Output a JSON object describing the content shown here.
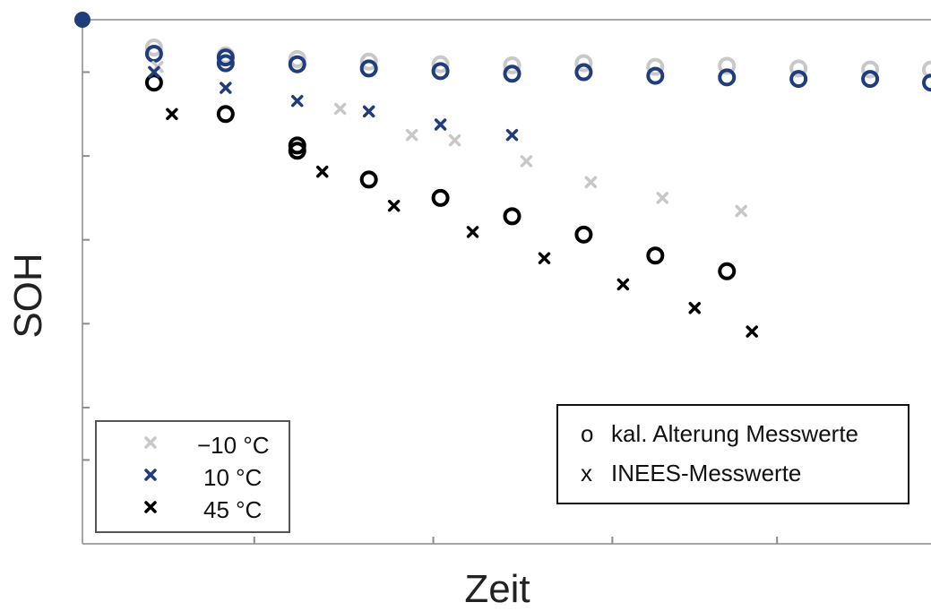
{
  "chart_data": {
    "type": "scatter",
    "title": "",
    "xlabel": "Zeit",
    "ylabel": "SOH",
    "xlim": [
      0,
      11.85
    ],
    "ylim": [
      0,
      10
    ],
    "grid": false,
    "x_ticks": [
      2.4,
      4.9,
      7.4,
      9.7
    ],
    "y_ticks": [
      9.0,
      7.4,
      5.8,
      4.2,
      2.6,
      1.6
    ],
    "axis_origin_marker_color": "#1f3d7a",
    "legend_temperature": {
      "placement": "bottom-left",
      "entries": [
        {
          "label": "−10 °C",
          "marker": "x",
          "color": "#c8c8c8"
        },
        {
          "label": "10 °C",
          "marker": "x",
          "color": "#1f3d7a"
        },
        {
          "label": "45 °C",
          "marker": "x",
          "color": "#000000"
        }
      ]
    },
    "legend_source": {
      "placement": "bottom-right",
      "entries": [
        {
          "label": "kal. Alterung Messwerte",
          "symbol": "o"
        },
        {
          "label": "INEES-Messwerte",
          "symbol": "x"
        }
      ]
    },
    "series": [
      {
        "temperature": "−10 °C",
        "kind": "measured",
        "color": "#c8c8c8",
        "marker": "o",
        "x": [
          1.0,
          2.0,
          3.0,
          4.0,
          5.0,
          6.0,
          7.0,
          8.0,
          9.0,
          10.0,
          11.0,
          11.85
        ],
        "y": [
          9.47,
          9.32,
          9.25,
          9.2,
          9.15,
          9.13,
          9.17,
          9.1,
          9.12,
          9.07,
          9.05,
          9.05
        ]
      },
      {
        "temperature": "10 °C",
        "kind": "measured",
        "color": "#1f3d7a",
        "marker": "o",
        "x": [
          1.0,
          2.0,
          2.0,
          3.0,
          4.0,
          5.0,
          6.0,
          7.0,
          8.0,
          9.0,
          10.0,
          11.0,
          11.85
        ],
        "y": [
          9.35,
          9.28,
          9.17,
          9.15,
          9.07,
          9.02,
          8.97,
          9.0,
          8.93,
          8.9,
          8.87,
          8.87,
          8.8
        ]
      },
      {
        "temperature": "45 °C",
        "kind": "measured",
        "color": "#000000",
        "marker": "o",
        "x": [
          1.0,
          2.0,
          3.0,
          3.0,
          4.0,
          5.0,
          6.0,
          7.0,
          8.0,
          9.0
        ],
        "y": [
          8.8,
          8.2,
          7.6,
          7.5,
          6.95,
          6.6,
          6.25,
          5.9,
          5.5,
          5.2
        ]
      },
      {
        "temperature": "−10 °C",
        "kind": "inees",
        "color": "#c8c8c8",
        "marker": "x",
        "x": [
          1.05,
          3.6,
          4.6,
          5.2,
          6.2,
          7.1,
          8.1,
          9.2
        ],
        "y": [
          9.1,
          8.3,
          7.8,
          7.7,
          7.3,
          6.9,
          6.6,
          6.35
        ]
      },
      {
        "temperature": "10 °C",
        "kind": "inees",
        "color": "#1f3d7a",
        "marker": "x",
        "x": [
          1.0,
          2.0,
          3.0,
          4.0,
          5.0,
          6.0
        ],
        "y": [
          9.0,
          8.7,
          8.45,
          8.25,
          8.0,
          7.8
        ]
      },
      {
        "temperature": "45 °C",
        "kind": "inees",
        "color": "#000000",
        "marker": "x",
        "x": [
          1.25,
          3.35,
          4.35,
          5.45,
          6.45,
          7.55,
          8.55,
          9.35
        ],
        "y": [
          8.2,
          7.1,
          6.45,
          5.95,
          5.45,
          4.95,
          4.5,
          4.05
        ]
      }
    ]
  }
}
